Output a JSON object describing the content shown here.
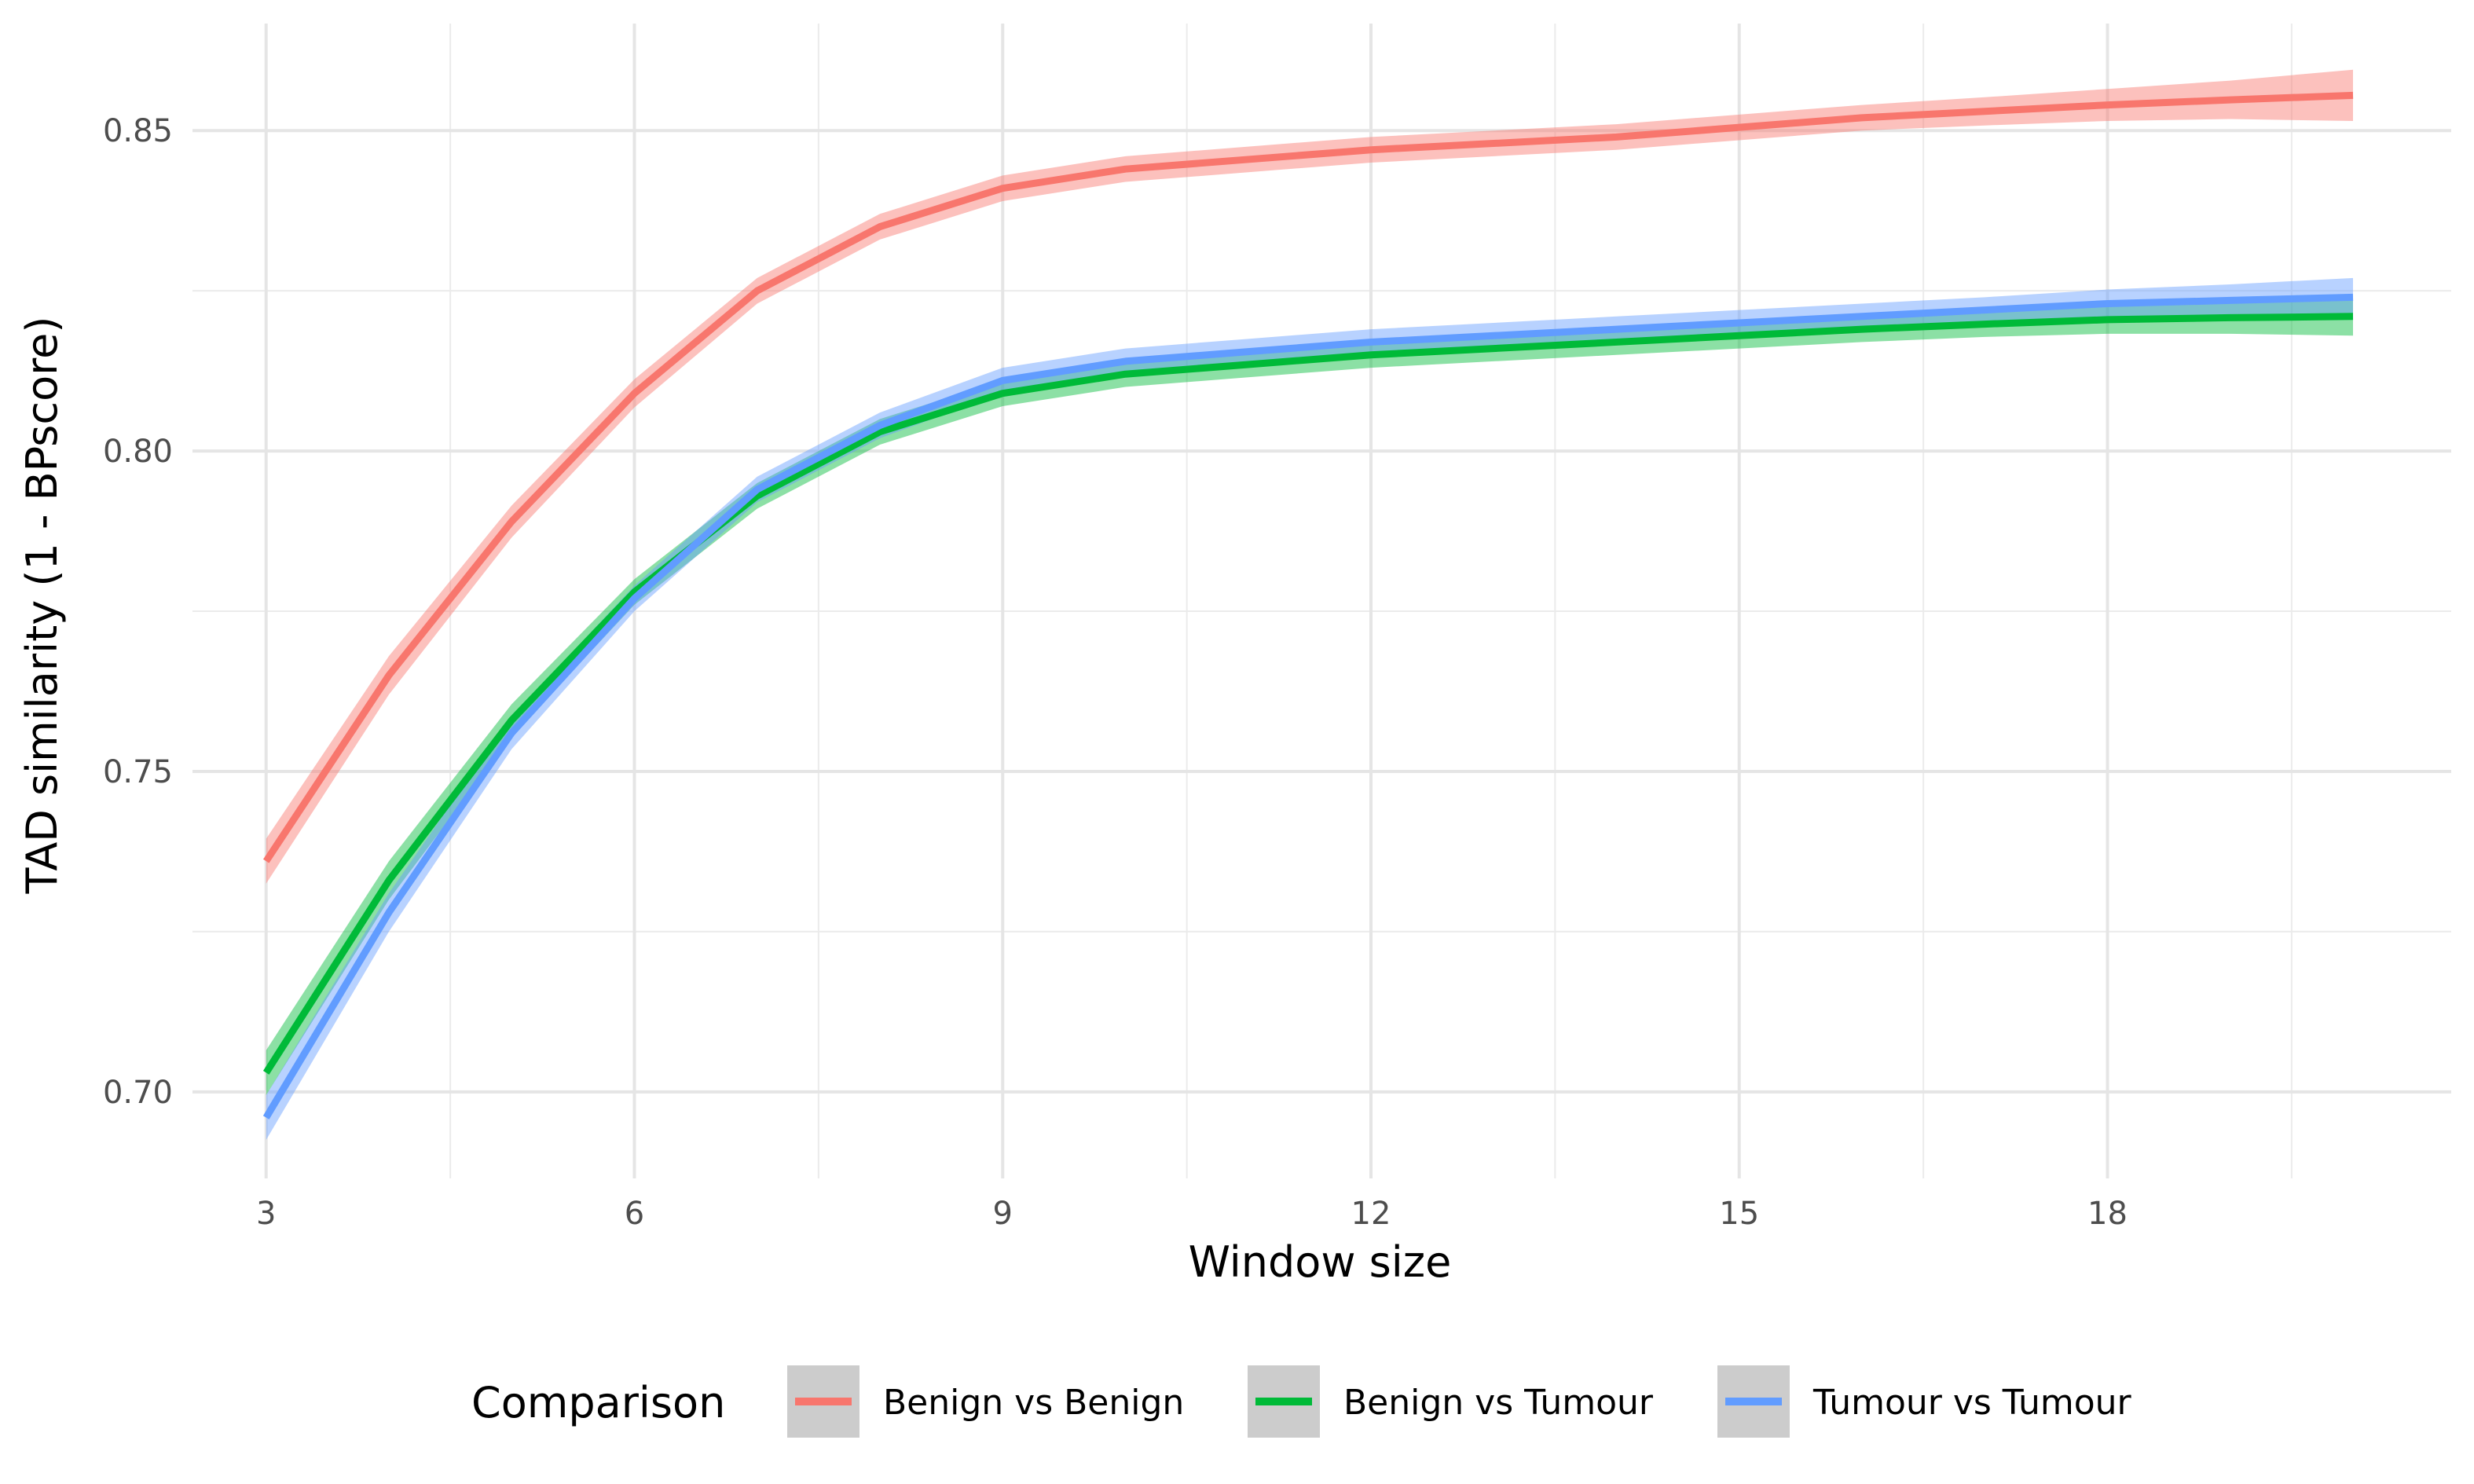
{
  "chart_data": {
    "type": "line",
    "xlabel": "Window size",
    "ylabel": "TAD similarity (1 - BPscore)",
    "xlim": [
      2.4,
      20.8
    ],
    "ylim": [
      0.6865,
      0.8667
    ],
    "x_ticks": [
      3,
      6,
      9,
      12,
      15,
      18
    ],
    "x_tick_labels": [
      "3",
      "6",
      "9",
      "12",
      "15",
      "18"
    ],
    "y_ticks": [
      0.7,
      0.75,
      0.8,
      0.85
    ],
    "y_tick_labels": [
      "0.70",
      "0.75",
      "0.80",
      "0.85"
    ],
    "y_minor_ticks": [
      0.725,
      0.775,
      0.825
    ],
    "grid": true,
    "legend": {
      "title": "Comparison",
      "position": "bottom"
    },
    "x": [
      3,
      4,
      5,
      6,
      7,
      8,
      9,
      10,
      11,
      12,
      13,
      14,
      15,
      16,
      17,
      18,
      19,
      20
    ],
    "series": [
      {
        "name": "Benign vs Benign",
        "color": "#F8766D",
        "values": [
          0.736,
          0.765,
          0.789,
          0.809,
          0.825,
          0.835,
          0.841,
          0.844,
          0.8455,
          0.847,
          0.848,
          0.849,
          0.8505,
          0.852,
          0.853,
          0.854,
          0.8548,
          0.8555
        ],
        "ci_half": [
          0.0035,
          0.003,
          0.0025,
          0.0022,
          0.002,
          0.002,
          0.002,
          0.002,
          0.002,
          0.002,
          0.002,
          0.002,
          0.002,
          0.002,
          0.0022,
          0.0025,
          0.003,
          0.004
        ]
      },
      {
        "name": "Benign vs Tumour",
        "color": "#00BA38",
        "values": [
          0.703,
          0.733,
          0.758,
          0.778,
          0.793,
          0.803,
          0.809,
          0.812,
          0.8135,
          0.815,
          0.816,
          0.817,
          0.818,
          0.819,
          0.8198,
          0.8205,
          0.8208,
          0.821
        ],
        "ci_half": [
          0.0035,
          0.003,
          0.0025,
          0.002,
          0.002,
          0.002,
          0.002,
          0.002,
          0.002,
          0.002,
          0.002,
          0.002,
          0.002,
          0.002,
          0.002,
          0.0022,
          0.0025,
          0.003
        ]
      },
      {
        "name": "Tumour vs Tumour",
        "color": "#619CFF",
        "values": [
          0.696,
          0.728,
          0.756,
          0.777,
          0.794,
          0.804,
          0.811,
          0.814,
          0.8155,
          0.817,
          0.818,
          0.819,
          0.82,
          0.821,
          0.822,
          0.823,
          0.8235,
          0.824
        ],
        "ci_half": [
          0.0035,
          0.003,
          0.0025,
          0.002,
          0.002,
          0.002,
          0.002,
          0.002,
          0.002,
          0.002,
          0.002,
          0.002,
          0.002,
          0.002,
          0.002,
          0.0022,
          0.0025,
          0.003
        ]
      }
    ]
  }
}
